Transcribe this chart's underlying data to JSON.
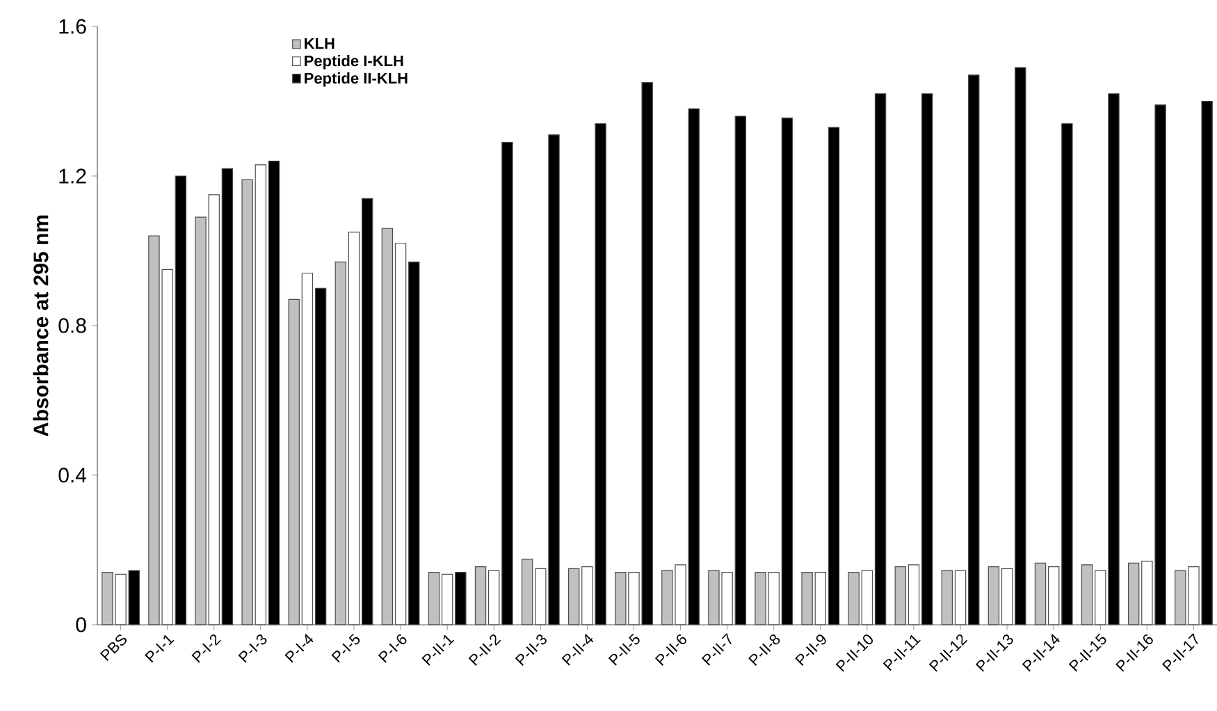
{
  "chart_data": {
    "type": "bar",
    "ylabel": "Absorbance at 295 nm",
    "categories": [
      "PBS",
      "P-I-1",
      "P-I-2",
      "P-I-3",
      "P-I-4",
      "P-I-5",
      "P-I-6",
      "P-II-1",
      "P-II-2",
      "P-II-3",
      "P-II-4",
      "P-II-5",
      "P-II-6",
      "P-II-7",
      "P-II-8",
      "P-II-9",
      "P-II-10",
      "P-II-11",
      "P-II-12",
      "P-II-13",
      "P-II-14",
      "P-II-15",
      "P-II-16",
      "P-II-17"
    ],
    "series": [
      {
        "name": "KLH",
        "color": "#c0c0c0",
        "values": [
          0.14,
          1.04,
          1.09,
          1.19,
          0.87,
          0.97,
          1.06,
          0.14,
          0.155,
          0.175,
          0.15,
          0.14,
          0.145,
          0.145,
          0.14,
          0.14,
          0.14,
          0.155,
          0.145,
          0.155,
          0.165,
          0.16,
          0.165,
          0.145
        ]
      },
      {
        "name": "Peptide I-KLH",
        "color": "#ffffff",
        "values": [
          0.135,
          0.95,
          1.15,
          1.23,
          0.94,
          1.05,
          1.02,
          0.135,
          0.145,
          0.15,
          0.155,
          0.14,
          0.16,
          0.14,
          0.14,
          0.14,
          0.145,
          0.16,
          0.145,
          0.15,
          0.155,
          0.145,
          0.17,
          0.155
        ]
      },
      {
        "name": "Peptide II-KLH",
        "color": "#000000",
        "values": [
          0.145,
          1.2,
          1.22,
          1.24,
          0.9,
          1.14,
          0.97,
          0.14,
          1.29,
          1.31,
          1.34,
          1.45,
          1.38,
          1.36,
          1.355,
          1.33,
          1.42,
          1.42,
          1.47,
          1.49,
          1.34,
          1.42,
          1.39,
          1.4
        ]
      }
    ],
    "ylim": [
      0,
      1.6
    ],
    "yticks": [
      0,
      0.4,
      0.8,
      1.2,
      1.6
    ],
    "grid": false,
    "legend": "top left"
  }
}
